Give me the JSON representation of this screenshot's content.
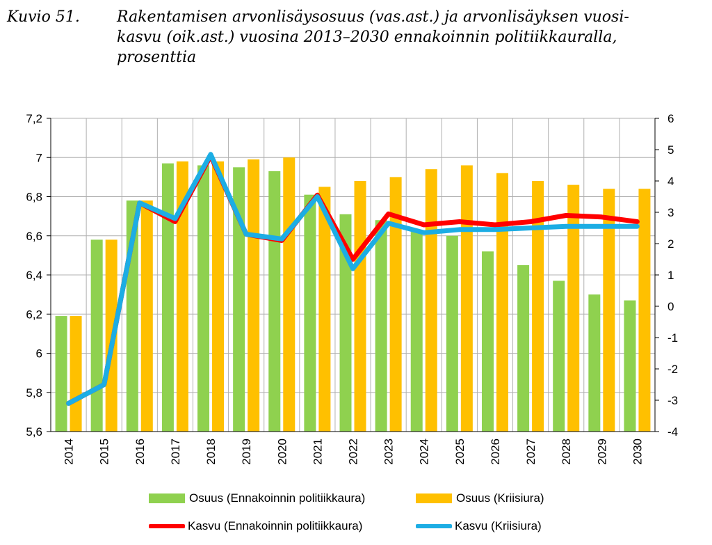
{
  "caption": {
    "number": "Kuvio 51.",
    "lines": [
      "Rakentamisen arvonlisäysosuus (vas.ast.) ja arvonlisäyksen vuosi-",
      "kasvu (oik.ast.) vuosina 2013–2030 ennakoinnin politiikkauralla,",
      "prosenttia"
    ]
  },
  "colors": {
    "green": "#8fd14f",
    "orange": "#ffc000",
    "red": "#ff0000",
    "blue": "#1cade4",
    "grid": "#b0b0b0"
  },
  "chart_data": {
    "type": "bar",
    "categories": [
      "2014",
      "2015",
      "2016",
      "2017",
      "2018",
      "2019",
      "2020",
      "2021",
      "2022",
      "2023",
      "2024",
      "2025",
      "2026",
      "2027",
      "2028",
      "2029",
      "2030"
    ],
    "left_axis": {
      "min": 5.6,
      "max": 7.2,
      "step": 0.2,
      "tick_labels": [
        "5,6",
        "5,8",
        "6",
        "6,2",
        "6,4",
        "6,6",
        "6,8",
        "7",
        "7,2"
      ]
    },
    "right_axis": {
      "min": -4,
      "max": 6,
      "step": 1,
      "tick_labels": [
        "-4",
        "-3",
        "-2",
        "-1",
        "0",
        "1",
        "2",
        "3",
        "4",
        "5",
        "6"
      ]
    },
    "grid": true,
    "legend_position": "bottom",
    "series": [
      {
        "name": "Osuus (Ennakoinnin politiikkaura)",
        "kind": "bar",
        "axis": "left",
        "color": "#8fd14f",
        "values": [
          6.19,
          6.58,
          6.78,
          6.97,
          6.96,
          6.95,
          6.93,
          6.81,
          6.71,
          6.68,
          6.62,
          6.6,
          6.52,
          6.45,
          6.37,
          6.3,
          6.27
        ]
      },
      {
        "name": "Osuus (Kriisiura)",
        "kind": "bar",
        "axis": "left",
        "color": "#ffc000",
        "values": [
          6.19,
          6.58,
          6.78,
          6.98,
          6.98,
          6.99,
          7.0,
          6.85,
          6.88,
          6.9,
          6.94,
          6.96,
          6.92,
          6.88,
          6.86,
          6.84,
          6.84
        ]
      },
      {
        "name": "Kasvu (Ennakoinnin politiikkaura)",
        "kind": "line",
        "axis": "right",
        "color": "#ff0000",
        "values": [
          -3.1,
          -2.5,
          3.3,
          2.7,
          4.8,
          2.3,
          2.1,
          3.55,
          1.5,
          2.95,
          2.6,
          2.7,
          2.6,
          2.7,
          2.9,
          2.85,
          2.7
        ]
      },
      {
        "name": "Kasvu (Kriisiura)",
        "kind": "line",
        "axis": "right",
        "color": "#1cade4",
        "values": [
          -3.1,
          -2.5,
          3.3,
          2.8,
          4.85,
          2.3,
          2.15,
          3.5,
          1.2,
          2.65,
          2.35,
          2.45,
          2.45,
          2.5,
          2.55,
          2.55,
          2.55
        ]
      }
    ]
  }
}
